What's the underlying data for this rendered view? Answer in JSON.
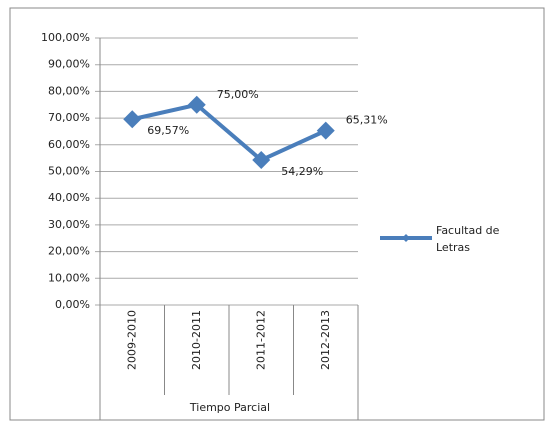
{
  "chart_data": {
    "type": "line",
    "categories": [
      "2009-2010",
      "2010-2011",
      "2011-2012",
      "2012-2013"
    ],
    "x_label": "Tiempo Parcial",
    "series": [
      {
        "name": "Facultad de Letras",
        "color": "#4a7ebb",
        "values": [
          69.57,
          75.0,
          54.29,
          65.31
        ],
        "value_labels": [
          "69,57%",
          "75,00%",
          "54,29%",
          "65,31%"
        ]
      }
    ],
    "ylim": [
      0,
      100
    ],
    "yticks": [
      {
        "value": 0,
        "label": "0,00%"
      },
      {
        "value": 10,
        "label": "10,00%"
      },
      {
        "value": 20,
        "label": "20,00%"
      },
      {
        "value": 30,
        "label": "30,00%"
      },
      {
        "value": 40,
        "label": "40,00%"
      },
      {
        "value": 50,
        "label": "50,00%"
      },
      {
        "value": 60,
        "label": "60,00%"
      },
      {
        "value": 70,
        "label": "70,00%"
      },
      {
        "value": 80,
        "label": "80,00%"
      },
      {
        "value": 90,
        "label": "90,00%"
      },
      {
        "value": 100,
        "label": "100,00%"
      }
    ],
    "grid": true,
    "legend": "right"
  }
}
